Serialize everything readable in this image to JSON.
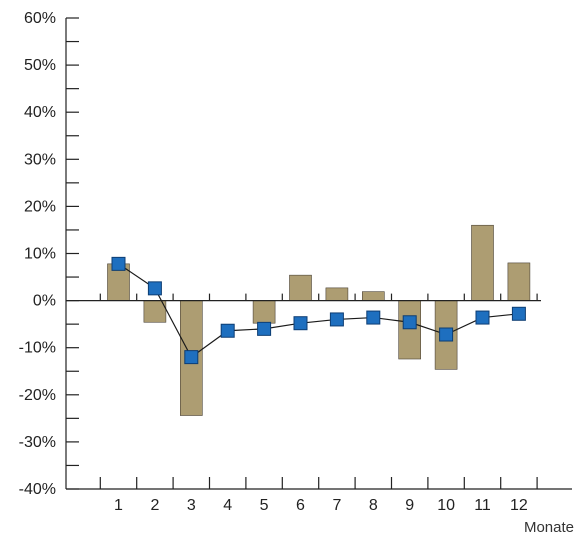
{
  "chart_data": {
    "type": "bar",
    "categories": [
      "1",
      "2",
      "3",
      "4",
      "5",
      "6",
      "7",
      "8",
      "9",
      "10",
      "11",
      "12"
    ],
    "xlabel": "Monate",
    "ylabel": "",
    "title": "",
    "ylim": [
      -40,
      60
    ],
    "yticks": [
      -40,
      -30,
      -20,
      -10,
      0,
      10,
      20,
      30,
      40,
      50,
      60
    ],
    "ytick_labels": [
      "-40%",
      "-30%",
      "-20%",
      "-10%",
      "0%",
      "10%",
      "20%",
      "30%",
      "40%",
      "50%",
      "60%"
    ],
    "series": [
      {
        "type": "bar",
        "values": [
          7.8,
          -4.6,
          -24.4,
          0,
          -4.8,
          5.4,
          2.7,
          1.9,
          -12.4,
          -14.6,
          16.0,
          8.0
        ],
        "color": "#ad9d72"
      },
      {
        "type": "line",
        "values": [
          7.8,
          2.6,
          -12.0,
          -6.4,
          -6.0,
          -4.8,
          -4.0,
          -3.6,
          -4.6,
          -7.2,
          -3.6,
          -2.8
        ],
        "color": "#1a1a1a",
        "marker_color": "#1e6fbf"
      }
    ],
    "grid": false
  }
}
